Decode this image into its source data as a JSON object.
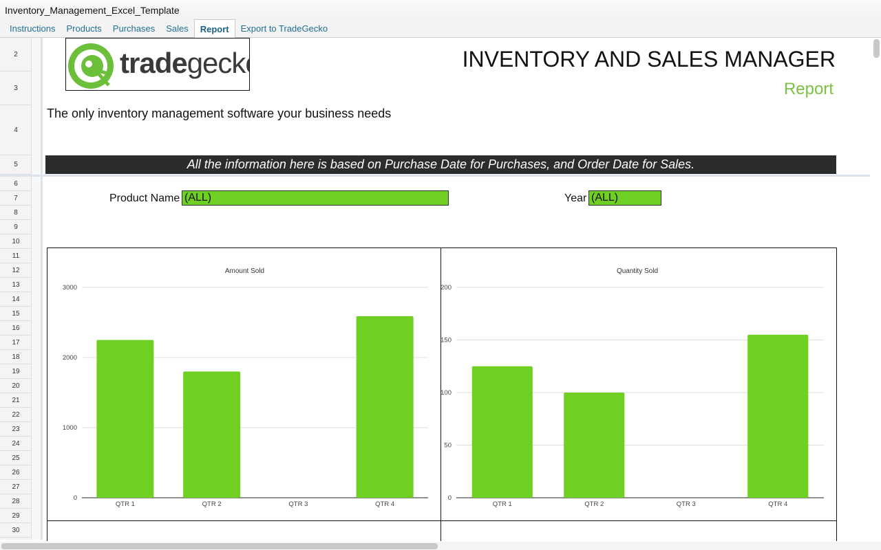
{
  "window": {
    "title": "Inventory_Management_Excel_Template"
  },
  "tabs": [
    {
      "label": "Instructions"
    },
    {
      "label": "Products"
    },
    {
      "label": "Purchases"
    },
    {
      "label": "Sales"
    },
    {
      "label": "Report",
      "active": true
    },
    {
      "label": "Export to TradeGecko"
    }
  ],
  "rows": [
    "2",
    "3",
    "4",
    "5",
    "6",
    "7",
    "8",
    "9",
    "10",
    "11",
    "12",
    "13",
    "14",
    "15",
    "16",
    "17",
    "18",
    "19",
    "20",
    "21",
    "22",
    "23",
    "24",
    "25",
    "26",
    "27",
    "28",
    "29",
    "30"
  ],
  "sheet": {
    "logo_text": "tradegecko",
    "title": "INVENTORY AND SALES MANAGER",
    "subtitle": "Report",
    "tagline": "The only inventory management software your business needs",
    "banner": "All the information here is based on Purchase Date for Purchases, and Order Date for Sales.",
    "product_label": "Product Name",
    "product_value": "(ALL)",
    "year_label": "Year",
    "year_value": "(ALL)"
  },
  "colors": {
    "accent": "#7bc242",
    "bar": "#6fcf22",
    "banner": "#2b2c2e"
  },
  "chart_data": [
    {
      "type": "bar",
      "title": "Amount Sold",
      "categories": [
        "QTR 1",
        "QTR 2",
        "QTR 3",
        "QTR 4"
      ],
      "values": [
        2250,
        1800,
        0,
        2590
      ],
      "ylim": [
        0,
        3000
      ],
      "yticks": [
        0,
        1000,
        2000,
        3000
      ],
      "grid": true
    },
    {
      "type": "bar",
      "title": "Quantity Sold",
      "categories": [
        "QTR 1",
        "QTR 2",
        "QTR 3",
        "QTR 4"
      ],
      "values": [
        125,
        100,
        0,
        155
      ],
      "ylim": [
        0,
        200
      ],
      "yticks": [
        0,
        50,
        100,
        150,
        200
      ],
      "grid": true
    }
  ]
}
